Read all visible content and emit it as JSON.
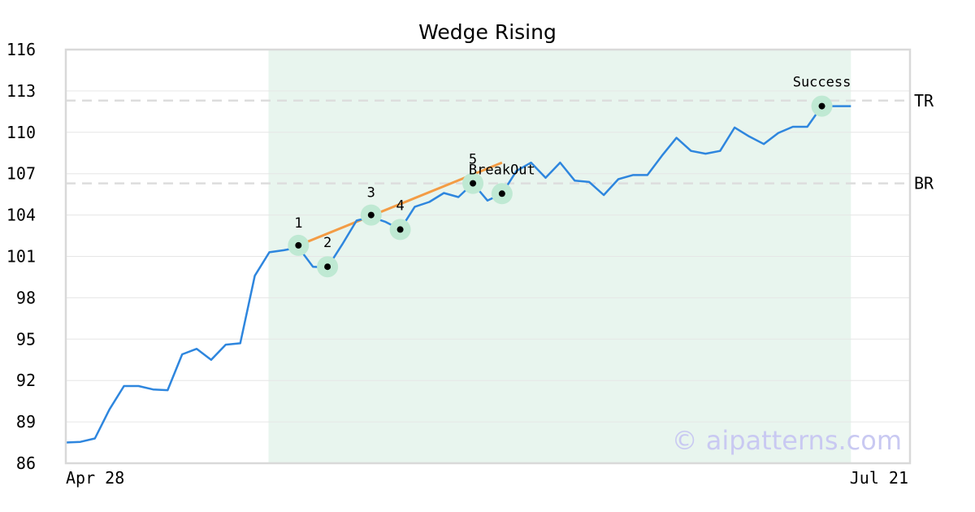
{
  "colors": {
    "line": "#2e86de",
    "wedge": "#f39c45",
    "highlight": "#e8f5ee",
    "marker_halo": "#bfe9d3",
    "marker_dot": "#000000",
    "ref_line": "#dddddd",
    "grid": "#e6e6e6",
    "frame": "#d9d9d9",
    "watermark": "#c9c9f2"
  },
  "watermark": "© aipatterns.com",
  "chart_data": {
    "type": "line",
    "title": "Wedge Rising",
    "xlabel": "",
    "ylabel": "",
    "ylim": [
      86,
      116
    ],
    "yticks": [
      86,
      89,
      92,
      95,
      98,
      101,
      104,
      107,
      110,
      113,
      116
    ],
    "x_tick_labels": [
      {
        "index": 0,
        "label": "Apr 28"
      },
      {
        "index": 55,
        "label": "Jul 21"
      }
    ],
    "grid": "horizontal",
    "series": [
      {
        "values": [
          87.5,
          87.55,
          87.8,
          89.9,
          91.6,
          91.6,
          91.35,
          91.3,
          93.9,
          94.3,
          93.5,
          94.6,
          94.7,
          99.6,
          101.3,
          101.45,
          101.65,
          100.25,
          100.2,
          101.85,
          103.6,
          103.85,
          103.5,
          102.95,
          104.6,
          104.95,
          105.6,
          105.3,
          106.3,
          105.05,
          105.55,
          107.2,
          107.8,
          106.7,
          107.8,
          106.5,
          106.4,
          105.45,
          106.6,
          106.9,
          106.9,
          108.3,
          109.6,
          108.65,
          108.45,
          108.65,
          110.35,
          109.7,
          109.15,
          109.95,
          110.4,
          110.4,
          111.9,
          111.9,
          111.9
        ]
      }
    ],
    "highlight_range": {
      "from_index": 14,
      "to_index": 54
    },
    "wedge_line": {
      "from": [
        16,
        101.8
      ],
      "to": [
        30,
        107.8
      ]
    },
    "reference_lines": [
      {
        "label": "TR",
        "y": 112.3
      },
      {
        "label": "BR",
        "y": 106.3
      }
    ],
    "points": [
      {
        "label": "1",
        "index": 16,
        "y": 101.8
      },
      {
        "label": "2",
        "index": 18,
        "y": 100.25
      },
      {
        "label": "3",
        "index": 21,
        "y": 104.0
      },
      {
        "label": "4",
        "index": 23,
        "y": 102.95
      },
      {
        "label": "5",
        "index": 28,
        "y": 106.3
      },
      {
        "label": "BreakOut",
        "index": 30,
        "y": 105.55
      },
      {
        "label": "Success",
        "index": 52,
        "y": 111.9
      }
    ]
  }
}
